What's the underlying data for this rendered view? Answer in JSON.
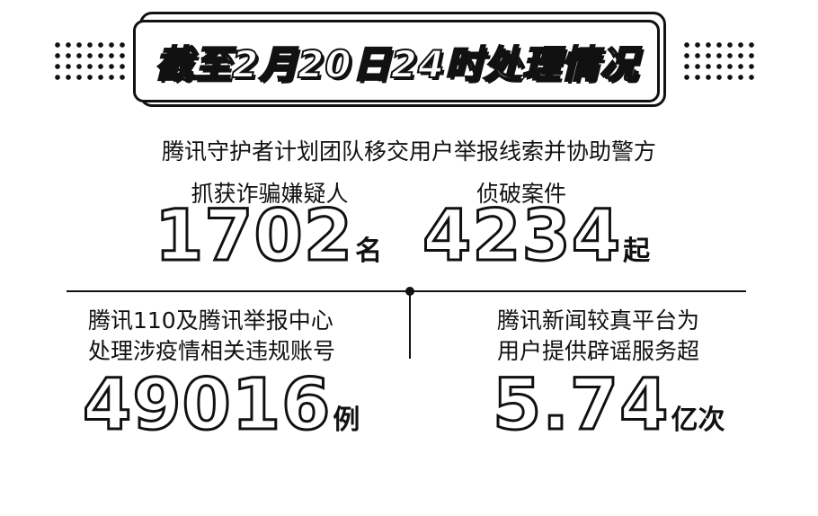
{
  "title": "截至2月20日24时处理情况",
  "subtitle": "腾讯守护者计划团队移交用户举报线索并协助警方",
  "stats": [
    {
      "label": "抓获诈骗嫌疑人",
      "value": "1702",
      "unit": "名"
    },
    {
      "label": "侦破案件",
      "value": "4234",
      "unit": "起"
    },
    {
      "label_lines": [
        "腾讯110及腾讯举报中心",
        "处理涉疫情相关违规账号"
      ],
      "value": "49016",
      "unit": "例"
    },
    {
      "label_lines": [
        "腾讯新闻较真平台为",
        "用户提供辟谣服务超"
      ],
      "value": "5.74",
      "unit": "亿次"
    }
  ]
}
